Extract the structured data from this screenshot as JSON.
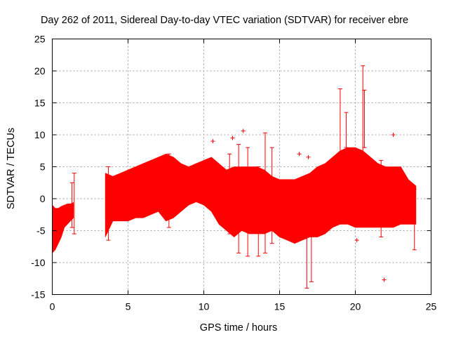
{
  "chart_data": {
    "type": "scatter",
    "title": "Day 262 of 2011, Sidereal Day-to-day VTEC variation (SDTVAR) for receiver ebre",
    "xlabel": "GPS time / hours",
    "ylabel": "SDTVAR / TECUs",
    "xlim": [
      0,
      25
    ],
    "ylim": [
      -15,
      25
    ],
    "x_ticks": [
      0,
      5,
      10,
      15,
      20,
      25
    ],
    "y_ticks": [
      -15,
      -10,
      -5,
      0,
      5,
      10,
      15,
      20,
      25
    ],
    "x_tick_labels": [
      "0",
      "5",
      "10",
      "15",
      "20",
      "25"
    ],
    "y_tick_labels": [
      "-15",
      "-10",
      "-5",
      "0",
      "5",
      "10",
      "15",
      "20",
      "25"
    ],
    "grid": true,
    "color": "#ff0000",
    "marker": "+",
    "series": [
      {
        "name": "SDTVAR",
        "segments": [
          {
            "x": [
              0.0,
              0.2,
              0.4,
              0.6,
              0.8,
              1.0,
              1.2,
              1.4
            ],
            "upper": [
              -1.0,
              -1.5,
              -1.5,
              -1.2,
              -1.0,
              -0.8,
              -0.8,
              -0.6
            ],
            "lower": [
              -8.5,
              -8.0,
              -7.0,
              -6.0,
              -4.5,
              -4.0,
              -3.5,
              -3.0
            ]
          },
          {
            "x": [
              3.5,
              4.0,
              4.5,
              5.0,
              5.5,
              6.0,
              6.5,
              7.0,
              7.5,
              8.0,
              8.5,
              9.0,
              9.5,
              10.0,
              10.5,
              11.0,
              11.5,
              12.0,
              12.5,
              13.0,
              13.5,
              14.0,
              14.5,
              15.0,
              15.5,
              16.0,
              16.5,
              17.0,
              17.5,
              18.0,
              18.5,
              19.0,
              19.5,
              20.0,
              20.5,
              21.0,
              21.5,
              22.0,
              22.5,
              23.0,
              23.5,
              24.0
            ],
            "upper": [
              4.0,
              3.5,
              4.0,
              4.5,
              5.0,
              5.5,
              6.0,
              6.5,
              7.0,
              6.5,
              5.5,
              5.0,
              5.5,
              6.0,
              6.5,
              5.5,
              4.5,
              5.0,
              5.0,
              5.0,
              5.0,
              4.5,
              3.5,
              3.0,
              3.0,
              3.0,
              3.5,
              4.0,
              5.0,
              5.5,
              6.5,
              7.5,
              8.0,
              8.0,
              7.5,
              6.5,
              5.5,
              5.0,
              5.0,
              5.0,
              3.0,
              2.0
            ],
            "lower": [
              -6.0,
              -3.5,
              -3.5,
              -3.5,
              -3.0,
              -3.0,
              -2.5,
              -2.0,
              -3.5,
              -3.0,
              -2.0,
              -1.0,
              -0.5,
              -1.0,
              -2.0,
              -4.0,
              -5.0,
              -6.0,
              -5.0,
              -5.5,
              -5.5,
              -5.5,
              -5.0,
              -6.0,
              -6.5,
              -7.0,
              -6.5,
              -6.0,
              -6.0,
              -5.5,
              -4.5,
              -4.0,
              -4.0,
              -4.5,
              -4.5,
              -4.5,
              -4.5,
              -4.5,
              -4.5,
              -4.0,
              -4.0,
              -4.0
            ]
          }
        ],
        "spikes": [
          {
            "x": 1.3,
            "from": -4.5,
            "to": 2.5
          },
          {
            "x": 1.45,
            "from": -5.5,
            "to": 4.0
          },
          {
            "x": 3.7,
            "from": -6.5,
            "to": 5.0
          },
          {
            "x": 7.7,
            "from": -4.5,
            "to": 7.0
          },
          {
            "x": 11.7,
            "from": -5.5,
            "to": 7.0
          },
          {
            "x": 12.3,
            "from": -8.5,
            "to": 8.5
          },
          {
            "x": 12.9,
            "from": -9.0,
            "to": 8.0
          },
          {
            "x": 13.6,
            "from": -9.0,
            "to": 5.0
          },
          {
            "x": 14.05,
            "from": -8.5,
            "to": 10.3
          },
          {
            "x": 14.5,
            "from": -7.0,
            "to": 8.0
          },
          {
            "x": 16.8,
            "from": -14.0,
            "to": 2.0
          },
          {
            "x": 17.1,
            "from": -13.0,
            "to": 2.0
          },
          {
            "x": 19.0,
            "from": 7.0,
            "to": 17.2
          },
          {
            "x": 19.4,
            "from": 8.0,
            "to": 13.5
          },
          {
            "x": 20.5,
            "from": 7.0,
            "to": 20.8
          },
          {
            "x": 20.6,
            "from": 8.0,
            "to": 17.0
          },
          {
            "x": 21.7,
            "from": -6.0,
            "to": 6.0
          },
          {
            "x": 23.9,
            "from": -8.0,
            "to": 1.5
          }
        ],
        "outliers": [
          {
            "x": 10.6,
            "y": 9.0
          },
          {
            "x": 11.9,
            "y": 9.5
          },
          {
            "x": 12.6,
            "y": 10.6
          },
          {
            "x": 16.3,
            "y": 7.0
          },
          {
            "x": 16.9,
            "y": 6.5
          },
          {
            "x": 20.1,
            "y": -6.5
          },
          {
            "x": 21.9,
            "y": -12.7
          },
          {
            "x": 22.5,
            "y": 10.0
          }
        ]
      }
    ]
  }
}
